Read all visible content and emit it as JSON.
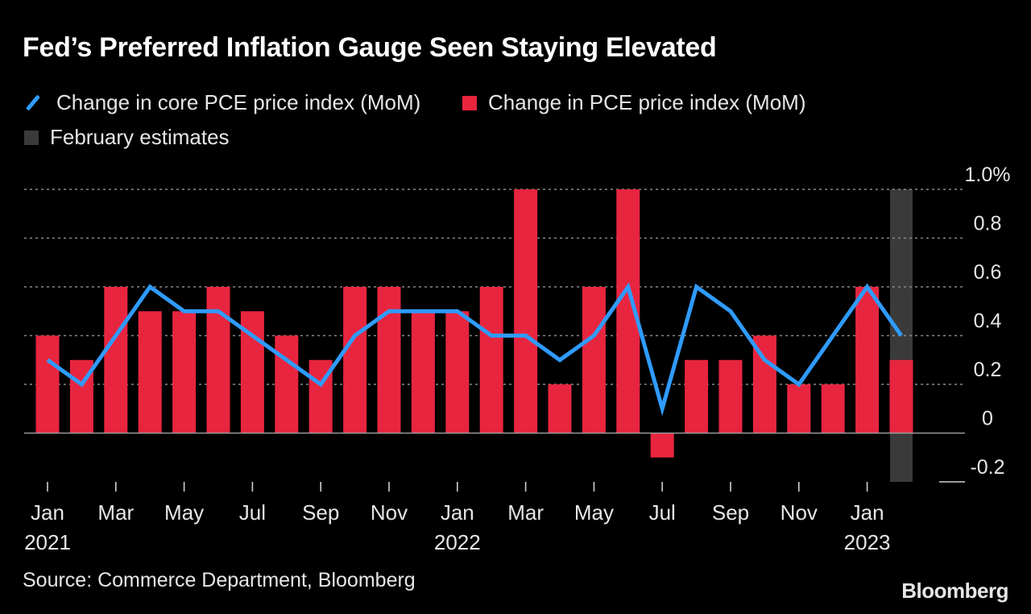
{
  "title": "Fed’s Preferred Inflation Gauge Seen Staying Elevated",
  "legend": {
    "line_label": "Change in core PCE price index (MoM)",
    "bar_label": "Change in PCE price index (MoM)",
    "estimate_label": "February estimates"
  },
  "source": "Source: Commerce Department, Bloomberg",
  "brand": "Bloomberg",
  "colors": {
    "line": "#2f9bff",
    "bar": "#e8253f",
    "estimate": "#3a3a3a",
    "grid": "#8a8a8a",
    "background": "#000000"
  },
  "chart_data": {
    "type": "bar",
    "title": "Fed’s Preferred Inflation Gauge Seen Staying Elevated",
    "categories": [
      "Jan 2021",
      "Feb 2021",
      "Mar 2021",
      "Apr 2021",
      "May 2021",
      "Jun 2021",
      "Jul 2021",
      "Aug 2021",
      "Sep 2021",
      "Oct 2021",
      "Nov 2021",
      "Dec 2021",
      "Jan 2022",
      "Feb 2022",
      "Mar 2022",
      "Apr 2022",
      "May 2022",
      "Jun 2022",
      "Jul 2022",
      "Aug 2022",
      "Sep 2022",
      "Oct 2022",
      "Nov 2022",
      "Dec 2022",
      "Jan 2023",
      "Feb 2023"
    ],
    "series": [
      {
        "name": "Change in PCE price index (MoM)",
        "type": "bar",
        "values": [
          0.4,
          0.3,
          0.6,
          0.5,
          0.5,
          0.6,
          0.5,
          0.4,
          0.3,
          0.6,
          0.6,
          0.5,
          0.5,
          0.6,
          1.0,
          0.2,
          0.6,
          1.0,
          -0.1,
          0.3,
          0.3,
          0.4,
          0.2,
          0.2,
          0.6,
          0.3
        ]
      },
      {
        "name": "Change in core PCE price index (MoM)",
        "type": "line",
        "values": [
          0.3,
          0.2,
          0.4,
          0.6,
          0.5,
          0.5,
          0.4,
          0.3,
          0.2,
          0.4,
          0.5,
          0.5,
          0.5,
          0.4,
          0.4,
          0.3,
          0.4,
          0.6,
          0.1,
          0.6,
          0.5,
          0.3,
          0.2,
          0.4,
          0.6,
          0.4
        ]
      }
    ],
    "estimate_index": 25,
    "ylim": [
      -0.2,
      1.0
    ],
    "yticks": [
      {
        "value": 1.0,
        "label": "1.0%"
      },
      {
        "value": 0.8,
        "label": "0.8"
      },
      {
        "value": 0.6,
        "label": "0.6"
      },
      {
        "value": 0.4,
        "label": "0.4"
      },
      {
        "value": 0.2,
        "label": "0.2"
      },
      {
        "value": 0,
        "label": "0"
      },
      {
        "value": -0.2,
        "label": "-0.2"
      }
    ],
    "xticks": [
      {
        "index": 0,
        "month": "Jan",
        "year": "2021"
      },
      {
        "index": 2,
        "month": "Mar",
        "year": ""
      },
      {
        "index": 4,
        "month": "May",
        "year": ""
      },
      {
        "index": 6,
        "month": "Jul",
        "year": ""
      },
      {
        "index": 8,
        "month": "Sep",
        "year": ""
      },
      {
        "index": 10,
        "month": "Nov",
        "year": ""
      },
      {
        "index": 12,
        "month": "Jan",
        "year": "2022"
      },
      {
        "index": 14,
        "month": "Mar",
        "year": ""
      },
      {
        "index": 16,
        "month": "May",
        "year": ""
      },
      {
        "index": 18,
        "month": "Jul",
        "year": ""
      },
      {
        "index": 20,
        "month": "Sep",
        "year": ""
      },
      {
        "index": 22,
        "month": "Nov",
        "year": ""
      },
      {
        "index": 24,
        "month": "Jan",
        "year": "2023"
      }
    ],
    "xlabel": "",
    "ylabel": "",
    "grid": true
  }
}
